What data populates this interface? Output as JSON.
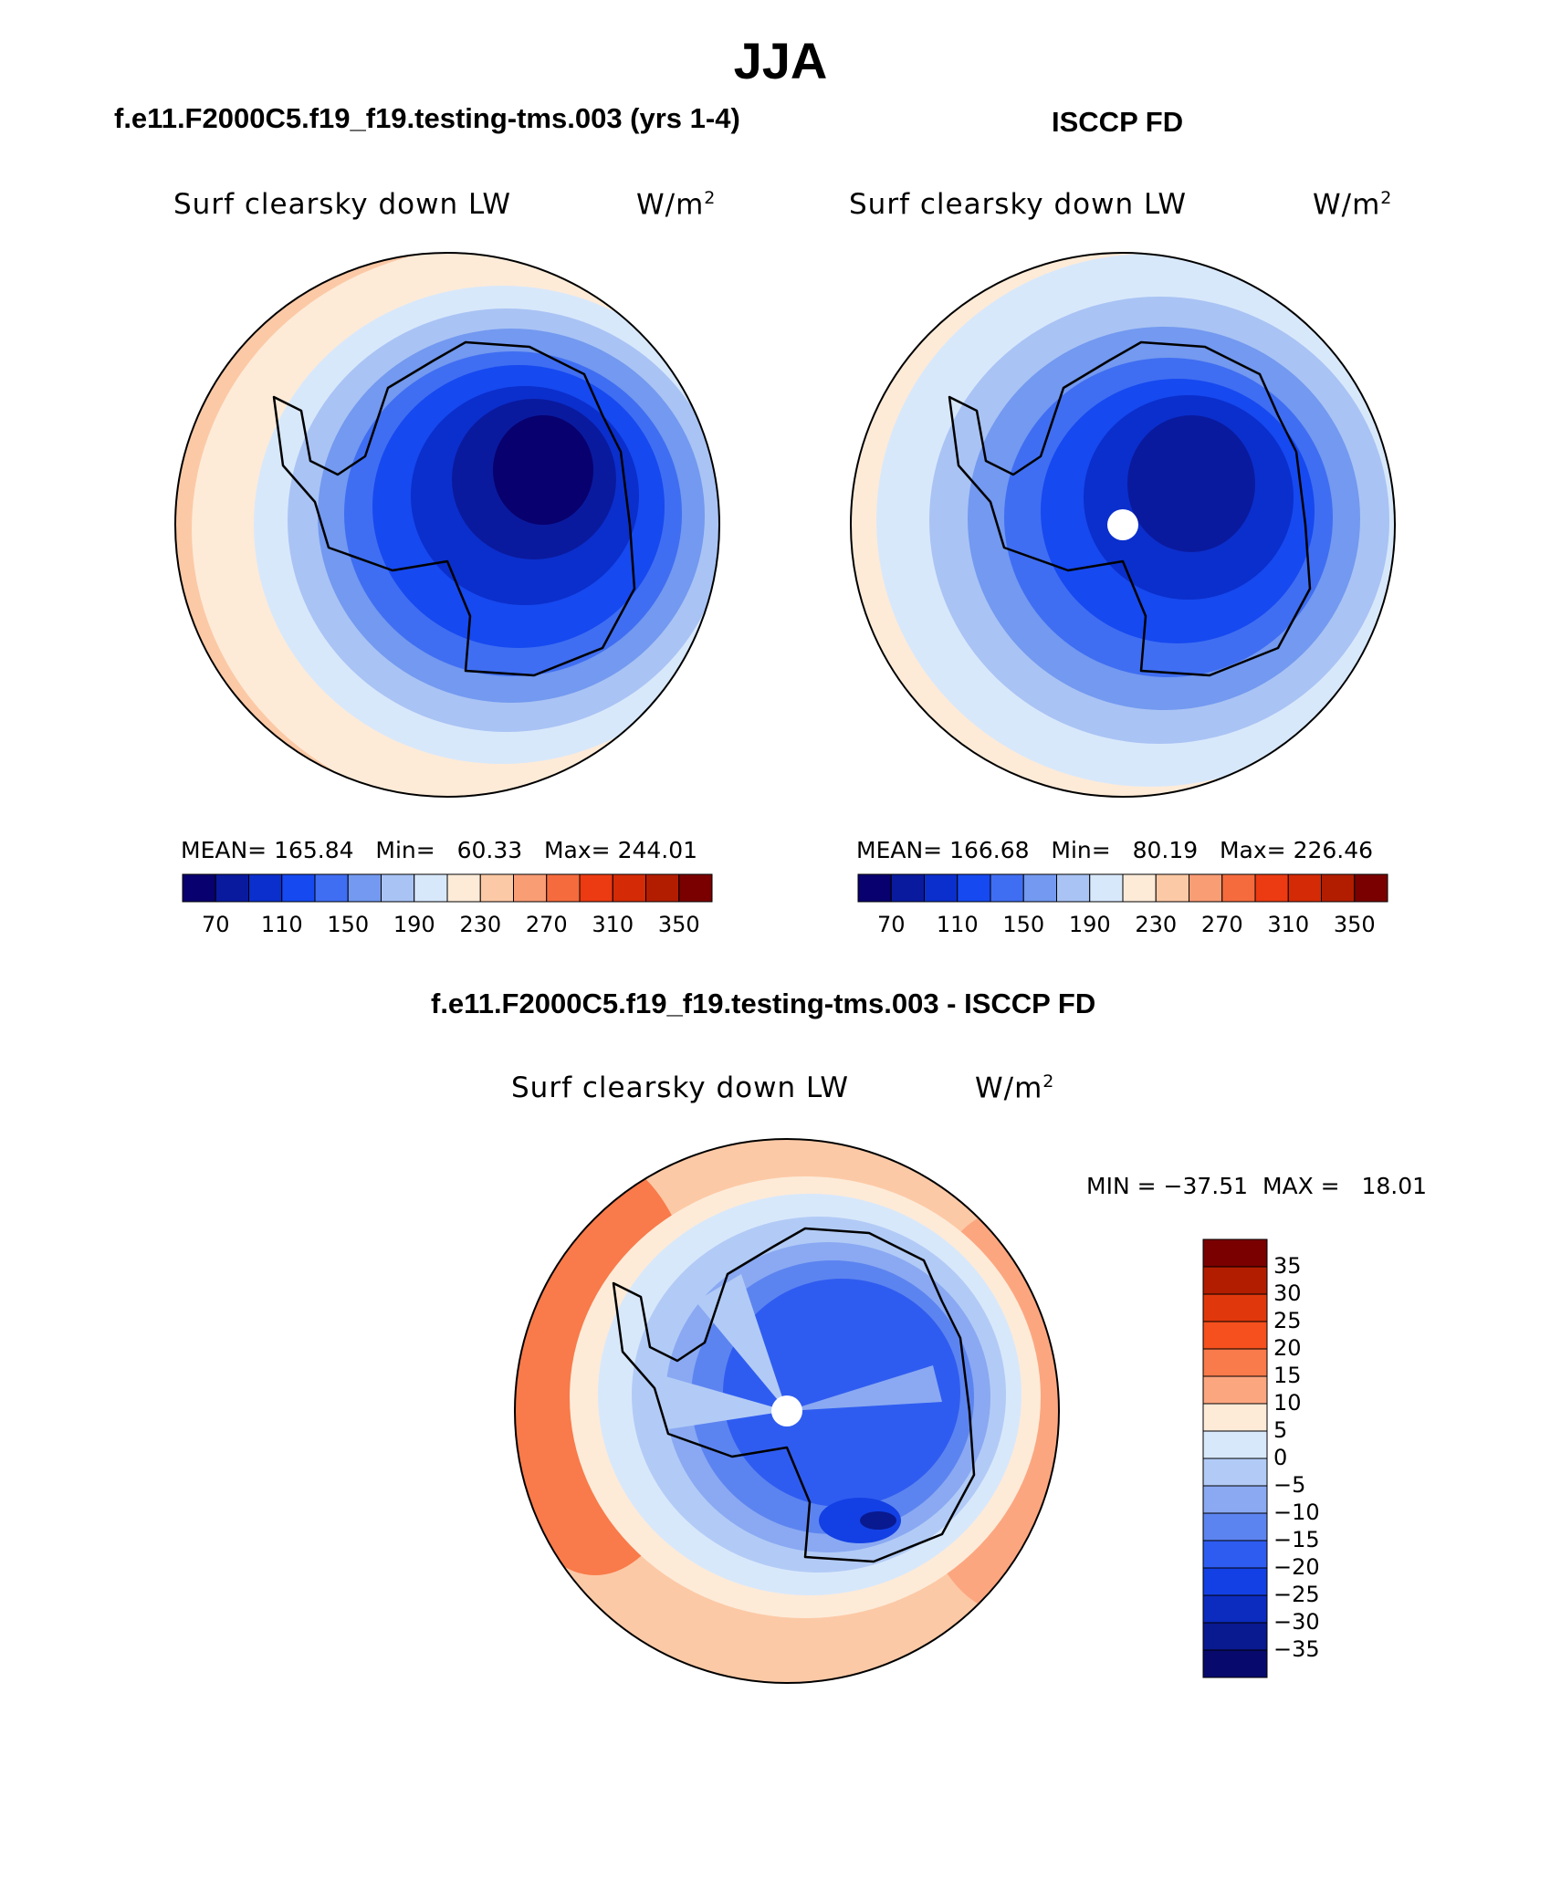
{
  "figure": {
    "title": "JJA",
    "units_base": "W/m",
    "units_exp": "2",
    "variable": "Surf clearsky down LW"
  },
  "panels": [
    {
      "id": "model",
      "title": "f.e11.F2000C5.f19_f19.testing-tms.003 (yrs 1-4)",
      "stats": {
        "mean_label": "MEAN=",
        "mean": "165.84",
        "min_label": "Min=",
        "min": "60.33",
        "max_label": "Max=",
        "max": "244.01"
      },
      "has_pole_hole": false
    },
    {
      "id": "obs",
      "title": "ISCCP FD",
      "stats": {
        "mean_label": "MEAN=",
        "mean": "166.68",
        "min_label": "Min=",
        "min": "80.19",
        "max_label": "Max=",
        "max": "226.46"
      },
      "has_pole_hole": true
    }
  ],
  "abs_colorbar": {
    "colors": [
      "#08006e",
      "#0a1a9e",
      "#0b2fcc",
      "#1649f0",
      "#3f6ef2",
      "#7399f0",
      "#a9c3f4",
      "#d8e8fb",
      "#fdebd8",
      "#fcc9a6",
      "#f99d75",
      "#f56b3d",
      "#ec3a12",
      "#d42a06",
      "#b21d00",
      "#7a0000"
    ],
    "tick_labels": [
      "70",
      "110",
      "150",
      "190",
      "230",
      "270",
      "310",
      "350"
    ]
  },
  "diff_panel": {
    "title": "f.e11.F2000C5.f19_f19.testing-tms.003 - ISCCP FD",
    "min_label": "MIN =",
    "min": "−37.51",
    "max_label": "MAX =",
    "max": "18.01",
    "colors": [
      "#7a0000",
      "#b21d00",
      "#e0380c",
      "#f5501d",
      "#f97a4a",
      "#fca680",
      "#fdebd8",
      "#d8e8fb",
      "#b2cbf6",
      "#8aa9f2",
      "#5c84f0",
      "#2f5cf0",
      "#1340e4",
      "#0c2bbf",
      "#09198f",
      "#070a6c"
    ],
    "tick_labels": [
      "35",
      "30",
      "25",
      "20",
      "15",
      "10",
      "5",
      "0",
      "−5",
      "−10",
      "−15",
      "−20",
      "−25",
      "−30",
      "−35"
    ]
  }
}
